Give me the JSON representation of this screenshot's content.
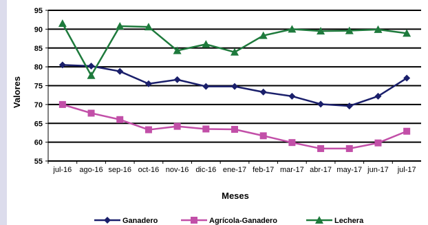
{
  "chart_data": {
    "type": "line",
    "title": "",
    "xlabel": "Meses",
    "ylabel": "Valores",
    "ylim": [
      55,
      95
    ],
    "yticks": [
      55,
      60,
      65,
      70,
      75,
      80,
      85,
      90,
      95
    ],
    "grid": "horizontal",
    "legend": "bottom",
    "categories": [
      "jul-16",
      "ago-16",
      "sep-16",
      "oct-16",
      "nov-16",
      "dic-16",
      "ene-17",
      "feb-17",
      "mar-17",
      "abr-17",
      "may-17",
      "jun-17",
      "jul-17"
    ],
    "series": [
      {
        "name": "Ganadero",
        "color": "#1a1f6b",
        "marker": "diamond",
        "values": [
          80.5,
          80.2,
          78.8,
          75.5,
          76.6,
          74.8,
          74.8,
          73.3,
          72.2,
          70.1,
          69.6,
          72.2,
          77.0
        ]
      },
      {
        "name": "Agrícola-Ganadero",
        "color": "#c24fa8",
        "marker": "square",
        "values": [
          70.0,
          67.7,
          66.0,
          63.3,
          64.2,
          63.5,
          63.4,
          61.7,
          59.9,
          58.3,
          58.3,
          59.8,
          62.9
        ]
      },
      {
        "name": "Lechera",
        "color": "#1e7a3c",
        "marker": "triangle",
        "values": [
          91.5,
          77.7,
          90.8,
          90.6,
          84.3,
          86.0,
          83.9,
          88.3,
          90.0,
          89.5,
          89.6,
          89.9,
          88.9
        ]
      }
    ]
  }
}
